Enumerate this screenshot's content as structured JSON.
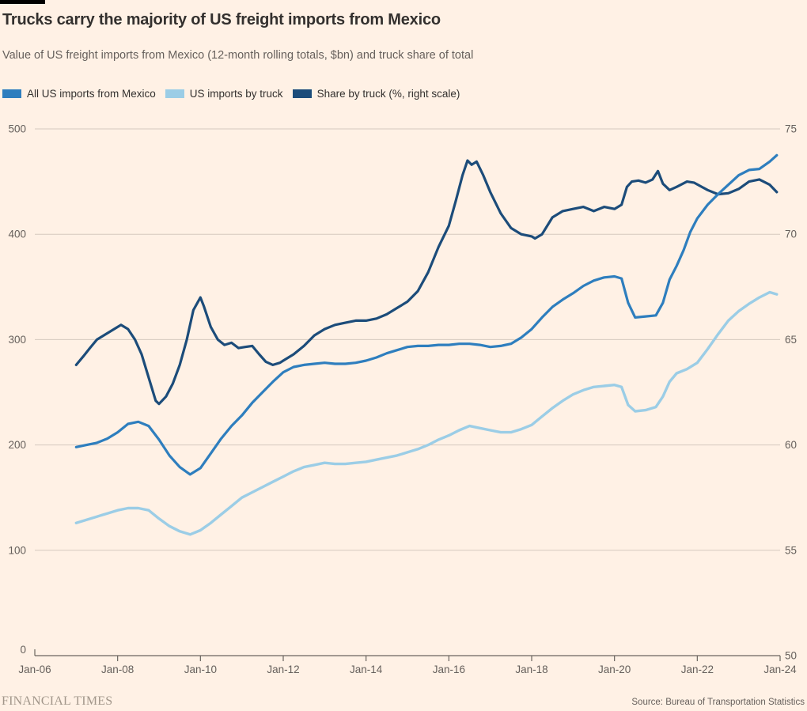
{
  "header": {
    "title": "Trucks carry the majority of US freight imports from Mexico",
    "subtitle": "Value of US freight imports from Mexico (12-month rolling totals, $bn) and truck share of total"
  },
  "footer": {
    "brand": "FINANCIAL TIMES",
    "source": "Source: Bureau of Transportation Statistics"
  },
  "colors": {
    "background": "#FFF1E5",
    "title_text": "#33302E",
    "muted_text": "#66605C",
    "gridline": "#D5C9BE",
    "axis": "#6B655F",
    "series_all_imports": "#2E7EBE",
    "series_truck_imports": "#9BCDE6",
    "series_truck_share": "#1C4C7A"
  },
  "chart_data": {
    "type": "line",
    "title": "Trucks carry the majority of US freight imports from Mexico",
    "subtitle": "Value of US freight imports from Mexico (12-month rolling totals, $bn) and truck share of total",
    "grid": "horizontal",
    "legend_position": "top",
    "x_axis": {
      "range": [
        2006,
        2024
      ],
      "ticks": [
        {
          "year": 2006,
          "label": "Jan-06"
        },
        {
          "year": 2008,
          "label": "Jan-08"
        },
        {
          "year": 2010,
          "label": "Jan-10"
        },
        {
          "year": 2012,
          "label": "Jan-12"
        },
        {
          "year": 2014,
          "label": "Jan-14"
        },
        {
          "year": 2016,
          "label": "Jan-16"
        },
        {
          "year": 2018,
          "label": "Jan-18"
        },
        {
          "year": 2020,
          "label": "Jan-20"
        },
        {
          "year": 2022,
          "label": "Jan-22"
        },
        {
          "year": 2024,
          "label": "Jan-24"
        }
      ]
    },
    "y_left": {
      "range": [
        0,
        500
      ],
      "ticks": [
        0,
        100,
        200,
        300,
        400,
        500
      ],
      "unit": "$bn"
    },
    "y_right": {
      "range": [
        50,
        75
      ],
      "ticks": [
        50,
        55,
        60,
        65,
        70,
        75
      ],
      "unit": "%"
    },
    "series": [
      {
        "name": "US imports by truck",
        "axis": "left",
        "color": "#9BCDE6",
        "width": 3.4,
        "points": [
          [
            2007.0,
            126
          ],
          [
            2007.25,
            129
          ],
          [
            2007.5,
            132
          ],
          [
            2007.75,
            135
          ],
          [
            2008.0,
            138
          ],
          [
            2008.25,
            140
          ],
          [
            2008.5,
            140
          ],
          [
            2008.75,
            138
          ],
          [
            2009.0,
            130
          ],
          [
            2009.25,
            123
          ],
          [
            2009.5,
            118
          ],
          [
            2009.75,
            115
          ],
          [
            2010.0,
            119
          ],
          [
            2010.25,
            126
          ],
          [
            2010.5,
            134
          ],
          [
            2010.75,
            142
          ],
          [
            2011.0,
            150
          ],
          [
            2011.25,
            155
          ],
          [
            2011.5,
            160
          ],
          [
            2011.75,
            165
          ],
          [
            2012.0,
            170
          ],
          [
            2012.25,
            175
          ],
          [
            2012.5,
            179
          ],
          [
            2012.75,
            181
          ],
          [
            2013.0,
            183
          ],
          [
            2013.25,
            182
          ],
          [
            2013.5,
            182
          ],
          [
            2013.75,
            183
          ],
          [
            2014.0,
            184
          ],
          [
            2014.25,
            186
          ],
          [
            2014.5,
            188
          ],
          [
            2014.75,
            190
          ],
          [
            2015.0,
            193
          ],
          [
            2015.25,
            196
          ],
          [
            2015.5,
            200
          ],
          [
            2015.75,
            205
          ],
          [
            2016.0,
            209
          ],
          [
            2016.25,
            214
          ],
          [
            2016.5,
            218
          ],
          [
            2016.75,
            216
          ],
          [
            2017.0,
            214
          ],
          [
            2017.25,
            212
          ],
          [
            2017.5,
            212
          ],
          [
            2017.75,
            215
          ],
          [
            2018.0,
            219
          ],
          [
            2018.25,
            227
          ],
          [
            2018.5,
            235
          ],
          [
            2018.75,
            242
          ],
          [
            2019.0,
            248
          ],
          [
            2019.25,
            252
          ],
          [
            2019.5,
            255
          ],
          [
            2019.75,
            256
          ],
          [
            2020.0,
            257
          ],
          [
            2020.17,
            255
          ],
          [
            2020.33,
            238
          ],
          [
            2020.5,
            232
          ],
          [
            2020.75,
            233
          ],
          [
            2021.0,
            236
          ],
          [
            2021.17,
            246
          ],
          [
            2021.33,
            260
          ],
          [
            2021.5,
            268
          ],
          [
            2021.75,
            272
          ],
          [
            2022.0,
            278
          ],
          [
            2022.25,
            291
          ],
          [
            2022.5,
            305
          ],
          [
            2022.75,
            318
          ],
          [
            2023.0,
            327
          ],
          [
            2023.25,
            334
          ],
          [
            2023.5,
            340
          ],
          [
            2023.75,
            345
          ],
          [
            2023.92,
            343
          ]
        ]
      },
      {
        "name": "Share by truck (%, right scale)",
        "axis": "right",
        "color": "#1C4C7A",
        "width": 3.2,
        "points": [
          [
            2007.0,
            63.8
          ],
          [
            2007.17,
            64.2
          ],
          [
            2007.33,
            64.6
          ],
          [
            2007.5,
            65.0
          ],
          [
            2007.75,
            65.3
          ],
          [
            2008.0,
            65.6
          ],
          [
            2008.08,
            65.7
          ],
          [
            2008.25,
            65.5
          ],
          [
            2008.42,
            65.0
          ],
          [
            2008.58,
            64.3
          ],
          [
            2008.75,
            63.2
          ],
          [
            2008.92,
            62.1
          ],
          [
            2009.0,
            61.95
          ],
          [
            2009.17,
            62.3
          ],
          [
            2009.33,
            62.9
          ],
          [
            2009.5,
            63.8
          ],
          [
            2009.67,
            65.0
          ],
          [
            2009.83,
            66.4
          ],
          [
            2010.0,
            67.0
          ],
          [
            2010.08,
            66.6
          ],
          [
            2010.25,
            65.6
          ],
          [
            2010.42,
            65.0
          ],
          [
            2010.58,
            64.75
          ],
          [
            2010.75,
            64.85
          ],
          [
            2010.92,
            64.6
          ],
          [
            2011.08,
            64.65
          ],
          [
            2011.25,
            64.7
          ],
          [
            2011.42,
            64.3
          ],
          [
            2011.58,
            63.95
          ],
          [
            2011.75,
            63.8
          ],
          [
            2011.92,
            63.9
          ],
          [
            2012.0,
            64.0
          ],
          [
            2012.25,
            64.3
          ],
          [
            2012.5,
            64.7
          ],
          [
            2012.75,
            65.2
          ],
          [
            2013.0,
            65.5
          ],
          [
            2013.25,
            65.7
          ],
          [
            2013.5,
            65.8
          ],
          [
            2013.75,
            65.9
          ],
          [
            2014.0,
            65.9
          ],
          [
            2014.25,
            66.0
          ],
          [
            2014.5,
            66.2
          ],
          [
            2014.75,
            66.5
          ],
          [
            2015.0,
            66.8
          ],
          [
            2015.25,
            67.3
          ],
          [
            2015.5,
            68.2
          ],
          [
            2015.75,
            69.4
          ],
          [
            2016.0,
            70.4
          ],
          [
            2016.17,
            71.6
          ],
          [
            2016.33,
            72.8
          ],
          [
            2016.45,
            73.5
          ],
          [
            2016.55,
            73.3
          ],
          [
            2016.67,
            73.45
          ],
          [
            2016.83,
            72.8
          ],
          [
            2017.0,
            72.0
          ],
          [
            2017.25,
            71.0
          ],
          [
            2017.5,
            70.3
          ],
          [
            2017.75,
            70.0
          ],
          [
            2018.0,
            69.9
          ],
          [
            2018.08,
            69.8
          ],
          [
            2018.25,
            70.0
          ],
          [
            2018.5,
            70.8
          ],
          [
            2018.75,
            71.1
          ],
          [
            2019.0,
            71.2
          ],
          [
            2019.25,
            71.3
          ],
          [
            2019.5,
            71.1
          ],
          [
            2019.75,
            71.3
          ],
          [
            2020.0,
            71.2
          ],
          [
            2020.17,
            71.4
          ],
          [
            2020.3,
            72.25
          ],
          [
            2020.42,
            72.5
          ],
          [
            2020.58,
            72.55
          ],
          [
            2020.75,
            72.45
          ],
          [
            2020.92,
            72.6
          ],
          [
            2021.05,
            73.0
          ],
          [
            2021.17,
            72.4
          ],
          [
            2021.33,
            72.1
          ],
          [
            2021.5,
            72.25
          ],
          [
            2021.75,
            72.5
          ],
          [
            2021.92,
            72.45
          ],
          [
            2022.25,
            72.1
          ],
          [
            2022.5,
            71.9
          ],
          [
            2022.75,
            71.95
          ],
          [
            2023.0,
            72.15
          ],
          [
            2023.25,
            72.5
          ],
          [
            2023.5,
            72.6
          ],
          [
            2023.75,
            72.35
          ],
          [
            2023.92,
            72.0
          ]
        ]
      },
      {
        "name": "All US imports from Mexico",
        "axis": "left",
        "color": "#2E7EBE",
        "width": 3.2,
        "points": [
          [
            2007.0,
            198
          ],
          [
            2007.25,
            200
          ],
          [
            2007.5,
            202
          ],
          [
            2007.75,
            206
          ],
          [
            2008.0,
            212
          ],
          [
            2008.25,
            220
          ],
          [
            2008.5,
            222
          ],
          [
            2008.75,
            218
          ],
          [
            2009.0,
            205
          ],
          [
            2009.25,
            190
          ],
          [
            2009.5,
            179
          ],
          [
            2009.75,
            172
          ],
          [
            2010.0,
            178
          ],
          [
            2010.25,
            192
          ],
          [
            2010.5,
            206
          ],
          [
            2010.75,
            218
          ],
          [
            2011.0,
            228
          ],
          [
            2011.25,
            240
          ],
          [
            2011.5,
            250
          ],
          [
            2011.75,
            260
          ],
          [
            2012.0,
            269
          ],
          [
            2012.25,
            274
          ],
          [
            2012.5,
            276
          ],
          [
            2012.75,
            277
          ],
          [
            2013.0,
            278
          ],
          [
            2013.25,
            277
          ],
          [
            2013.5,
            277
          ],
          [
            2013.75,
            278
          ],
          [
            2014.0,
            280
          ],
          [
            2014.25,
            283
          ],
          [
            2014.5,
            287
          ],
          [
            2014.75,
            290
          ],
          [
            2015.0,
            293
          ],
          [
            2015.25,
            294
          ],
          [
            2015.5,
            294
          ],
          [
            2015.75,
            295
          ],
          [
            2016.0,
            295
          ],
          [
            2016.25,
            296
          ],
          [
            2016.5,
            296
          ],
          [
            2016.75,
            295
          ],
          [
            2017.0,
            293
          ],
          [
            2017.25,
            294
          ],
          [
            2017.5,
            296
          ],
          [
            2017.75,
            302
          ],
          [
            2018.0,
            310
          ],
          [
            2018.25,
            321
          ],
          [
            2018.5,
            331
          ],
          [
            2018.75,
            338
          ],
          [
            2019.0,
            344
          ],
          [
            2019.25,
            351
          ],
          [
            2019.5,
            356
          ],
          [
            2019.75,
            359
          ],
          [
            2020.0,
            360
          ],
          [
            2020.17,
            358
          ],
          [
            2020.33,
            335
          ],
          [
            2020.5,
            321
          ],
          [
            2020.75,
            322
          ],
          [
            2021.0,
            323
          ],
          [
            2021.17,
            335
          ],
          [
            2021.33,
            357
          ],
          [
            2021.5,
            370
          ],
          [
            2021.67,
            385
          ],
          [
            2021.83,
            402
          ],
          [
            2022.0,
            415
          ],
          [
            2022.25,
            428
          ],
          [
            2022.5,
            438
          ],
          [
            2022.75,
            447
          ],
          [
            2023.0,
            456
          ],
          [
            2023.25,
            461
          ],
          [
            2023.5,
            462
          ],
          [
            2023.75,
            469
          ],
          [
            2023.92,
            475
          ]
        ]
      }
    ],
    "legend_order": [
      "All US imports from Mexico",
      "US imports by truck",
      "Share by truck (%, right scale)"
    ]
  }
}
